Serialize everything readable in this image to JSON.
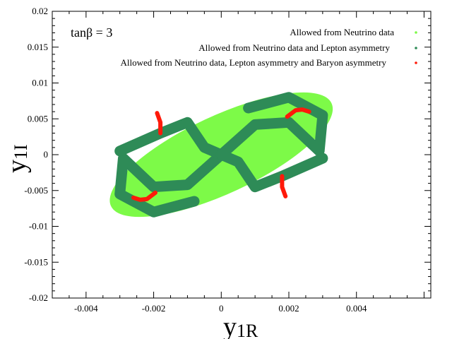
{
  "chart_data": {
    "type": "scatter",
    "title": "",
    "xlabel_main": "y",
    "xlabel_sub": "1R",
    "ylabel_main": "y",
    "ylabel_sub": "1I",
    "xlim": [
      -0.005,
      0.0062
    ],
    "ylim": [
      -0.02,
      0.02
    ],
    "x_ticks": [
      -0.004,
      -0.002,
      0,
      0.002,
      0.004
    ],
    "x_tick_labels": [
      "-0.004",
      "-0.002",
      "0",
      "0.002",
      "0.004"
    ],
    "y_ticks": [
      -0.02,
      -0.015,
      -0.01,
      -0.005,
      0,
      0.005,
      0.01,
      0.015,
      0.02
    ],
    "y_tick_labels": [
      "-0.02",
      "-0.015",
      "-0.01",
      "-0.005",
      "0",
      "0.005",
      "0.01",
      "0.015",
      "0.02"
    ],
    "annotation": {
      "prefix": "tan",
      "symbol": "β",
      "suffix": " = 3"
    },
    "legend_position": "top-right",
    "grid": false,
    "series": [
      {
        "name": "Allowed from Neutrino data",
        "color": "#7dfa48",
        "region": "ellipse",
        "ellipse": {
          "center": [
            0,
            0
          ],
          "semi_major": 0.0036,
          "semi_minor": 0.0054,
          "tilt_deg": 25
        }
      },
      {
        "name": "Allowed from Neutrino data and Lepton asymmetry",
        "color": "#2e8b57",
        "region": "bands",
        "bands": [
          [
            [
              -0.0008,
              -0.0065
            ],
            [
              -0.002,
              -0.008
            ],
            [
              -0.003,
              -0.0055
            ],
            [
              -0.0029,
              -0.0005
            ],
            [
              -0.002,
              -0.0045
            ],
            [
              -0.001,
              -0.0042
            ],
            [
              0.0,
              0.0
            ]
          ],
          [
            [
              0.0,
              0.0
            ],
            [
              0.001,
              0.0042
            ],
            [
              0.002,
              0.0045
            ],
            [
              0.0029,
              0.0005
            ],
            [
              0.003,
              0.0055
            ],
            [
              0.002,
              0.008
            ],
            [
              0.0008,
              0.0065
            ]
          ],
          [
            [
              -0.003,
              0.0005
            ],
            [
              -0.0018,
              0.003
            ],
            [
              -0.001,
              0.0045
            ],
            [
              -0.0005,
              0.001
            ],
            [
              0.0,
              0.0
            ]
          ],
          [
            [
              0.0,
              0.0
            ],
            [
              0.0005,
              -0.001
            ],
            [
              0.001,
              -0.0045
            ],
            [
              0.0018,
              -0.003
            ],
            [
              0.003,
              -0.0005
            ]
          ]
        ]
      },
      {
        "name": "Allowed from Neutrino data, Lepton asymmetry and Baryon asymmetry",
        "color": "#ff1a0a",
        "region": "arcs",
        "arcs": [
          [
            [
              0.00195,
              0.0053
            ],
            [
              0.0022,
              0.0062
            ],
            [
              0.0024,
              0.0063
            ],
            [
              0.0026,
              0.006
            ]
          ],
          [
            [
              -0.00195,
              -0.0053
            ],
            [
              -0.0022,
              -0.0062
            ],
            [
              -0.0024,
              -0.0063
            ],
            [
              -0.0026,
              -0.006
            ]
          ],
          [
            [
              -0.0019,
              0.0058
            ],
            [
              -0.0018,
              0.0045
            ],
            [
              -0.0018,
              0.003
            ]
          ],
          [
            [
              0.0019,
              -0.0058
            ],
            [
              0.0018,
              -0.0045
            ],
            [
              0.0018,
              -0.003
            ]
          ]
        ]
      }
    ]
  }
}
